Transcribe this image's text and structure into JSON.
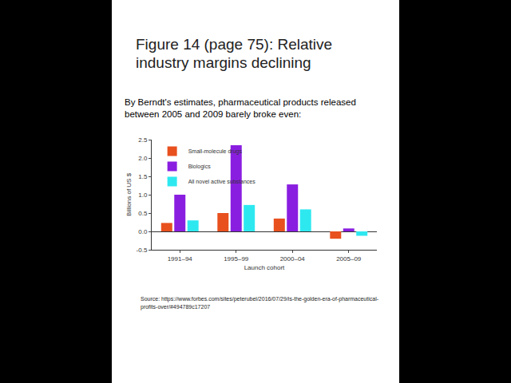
{
  "slide": {
    "title": "Figure 14 (page 75): Relative industry margins declining",
    "subtitle": "By Berndt's estimates, pharmaceutical products released between 2005 and 2009 barely broke even:",
    "source": "Source: https://www.forbes.com/sites/peterubel/2016/07/29/is-the-golden-era-of-pharmaceutical-profits-over/#494789c17207"
  },
  "chart_data": {
    "type": "bar",
    "x_label": "Launch cohort",
    "y_label": "Billions of US $",
    "categories": [
      "1991–94",
      "1995–99",
      "2000–04",
      "2005–09"
    ],
    "series": [
      {
        "name": "Small-molecule drugs",
        "color": "#e8501e",
        "values": [
          0.23,
          0.5,
          0.35,
          -0.2
        ]
      },
      {
        "name": "Biologics",
        "color": "#8a1ee0",
        "values": [
          1.0,
          2.35,
          1.28,
          0.08
        ]
      },
      {
        "name": "All novel active substances",
        "color": "#2ee8f0",
        "values": [
          0.3,
          0.72,
          0.6,
          -0.12
        ]
      }
    ],
    "ylim": [
      -0.5,
      2.5
    ],
    "yticks": [
      {
        "value": -0.5,
        "label": "-0.5"
      },
      {
        "value": 0,
        "label": "0.0"
      },
      {
        "value": 0.5,
        "label": "0.5"
      },
      {
        "value": 1,
        "label": "1.0"
      },
      {
        "value": 1.5,
        "label": "1.5"
      },
      {
        "value": 2,
        "label": "2.0"
      },
      {
        "value": 2.5,
        "label": "2.5"
      }
    ],
    "legend": "top left",
    "grid": false
  }
}
